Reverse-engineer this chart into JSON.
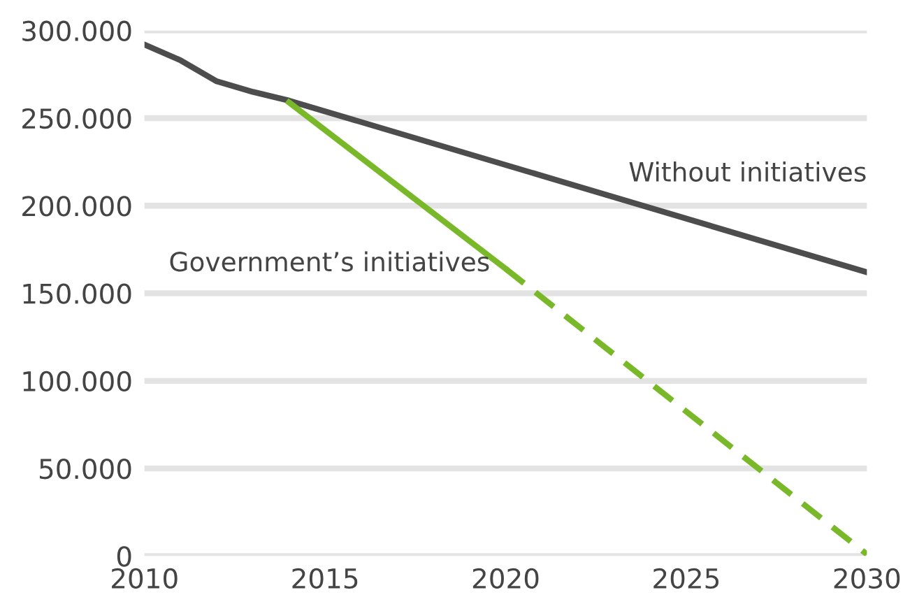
{
  "chart_data": {
    "type": "line",
    "xlim": [
      2010,
      2030
    ],
    "xticks": [
      2010,
      2015,
      2020,
      2025,
      2030
    ],
    "ylim": [
      0,
      300000
    ],
    "yticks": [
      {
        "value": 0,
        "label": "0"
      },
      {
        "value": 50000,
        "label": "50.000"
      },
      {
        "value": 100000,
        "label": "100.000"
      },
      {
        "value": 150000,
        "label": "150.000"
      },
      {
        "value": 200000,
        "label": "200.000"
      },
      {
        "value": 250000,
        "label": "250.000"
      },
      {
        "value": 300000,
        "label": "300.000"
      }
    ],
    "grid": "y",
    "marker": "none",
    "series": [
      {
        "name": "Without initiatives",
        "color": "#4d4d4d",
        "line_style": "solid",
        "x": [
          2010,
          2011,
          2012,
          2013,
          2014,
          2030
        ],
        "values": [
          292000,
          283000,
          271000,
          265000,
          260000,
          162000
        ]
      },
      {
        "name": "Government’s initiatives",
        "color": "#79b829",
        "line_style": "solid",
        "x": [
          2014,
          2020
        ],
        "values": [
          259000,
          164000
        ]
      },
      {
        "color": "#79b829",
        "line_style": "dashed",
        "x": [
          2020,
          2030
        ],
        "values": [
          164000,
          1000
        ]
      }
    ],
    "legend": false
  }
}
